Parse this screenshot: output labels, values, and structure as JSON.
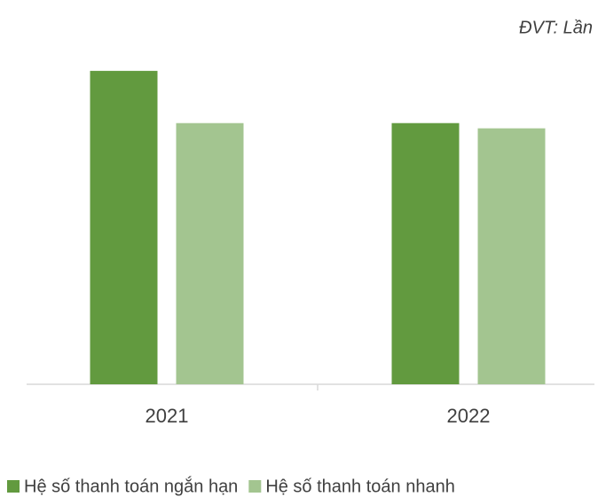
{
  "chart_data": {
    "type": "bar",
    "subtitle": "ĐVT: Lần",
    "categories": [
      "2021",
      "2022"
    ],
    "series": [
      {
        "name": "Hệ số thanh toán ngắn hạn",
        "color": "#629a3f",
        "values": [
          1.2,
          1.0
        ]
      },
      {
        "name": "Hệ số thanh toán nhanh",
        "color": "#a3c590",
        "values": [
          1.0,
          0.98
        ]
      }
    ],
    "ylim": [
      0,
      1.4
    ]
  }
}
